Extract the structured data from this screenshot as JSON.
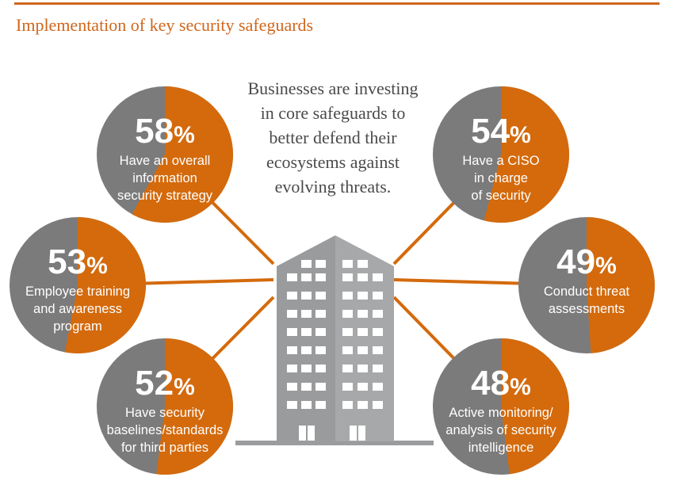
{
  "title": "Implementation of key security safeguards",
  "intro_text": "Businesses are investing\nin core safeguards to\nbetter defend their\necosystems against\nevolving threats.",
  "colors": {
    "orange": "#d46a0c",
    "gray": "#7b7b7c",
    "building": "#9b9c9e",
    "rule": "#d0661c"
  },
  "chart_data": {
    "type": "pie",
    "title": "Implementation of key security safeguards",
    "unit": "%",
    "items": [
      {
        "value": 58,
        "label_lines": [
          "Have an overall",
          "information",
          "security strategy"
        ]
      },
      {
        "value": 53,
        "label_lines": [
          "Employee training",
          "and awareness",
          "program"
        ]
      },
      {
        "value": 52,
        "label_lines": [
          "Have security",
          "baselines/standards",
          "for third parties"
        ]
      },
      {
        "value": 54,
        "label_lines": [
          "Have a CISO",
          "in charge",
          "of security"
        ]
      },
      {
        "value": 49,
        "label_lines": [
          "Conduct threat",
          "assessments"
        ]
      },
      {
        "value": 48,
        "label_lines": [
          "Active monitoring/",
          "analysis of security",
          "intelligence"
        ]
      }
    ]
  }
}
